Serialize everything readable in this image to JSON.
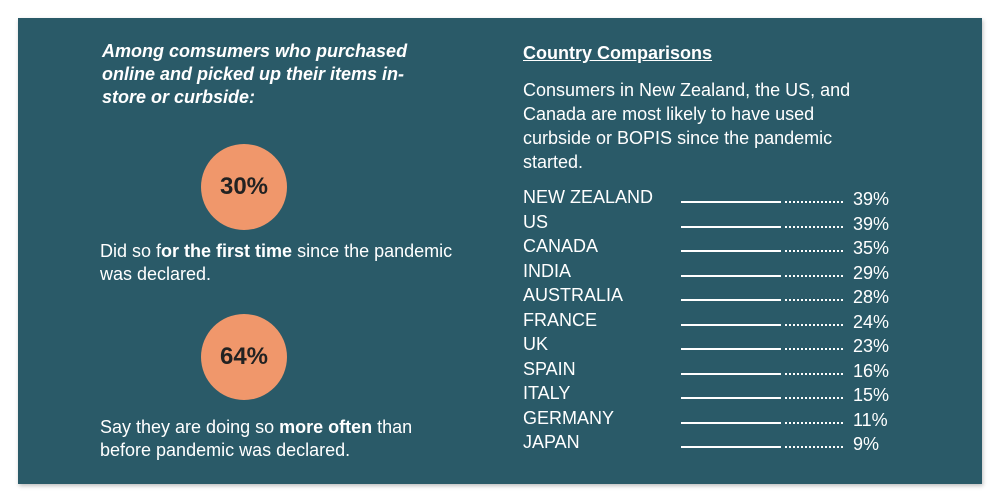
{
  "left": {
    "intro": "Among comsumers who purchased online and picked up their items in-store or curbside:",
    "stats": [
      {
        "value": "30%",
        "text_before": "Did so f",
        "text_bold": "or the first time",
        "text_after": " since the pandemic was declared."
      },
      {
        "value": "64%",
        "text_before": "Say they are doing so ",
        "text_bold": "more often",
        "text_after": " than before pandemic was declared."
      }
    ],
    "circle_color": "#f0976b"
  },
  "right": {
    "title": "Country Comparisons",
    "description": "Consumers in New Zealand, the US, and Canada are most likely to have used curbside or BOPIS since the pandemic started.",
    "rows": [
      {
        "country": "NEW ZEALAND",
        "pct": "39%"
      },
      {
        "country": "US",
        "pct": "39%"
      },
      {
        "country": "CANADA",
        "pct": "35%"
      },
      {
        "country": "INDIA",
        "pct": "29%"
      },
      {
        "country": "AUSTRALIA",
        "pct": "28%"
      },
      {
        "country": "FRANCE",
        "pct": "24%"
      },
      {
        "country": "UK",
        "pct": "23%"
      },
      {
        "country": "SPAIN",
        "pct": "16%"
      },
      {
        "country": "ITALY",
        "pct": "15%"
      },
      {
        "country": "GERMANY",
        "pct": "11%"
      },
      {
        "country": "JAPAN",
        "pct": "9%"
      }
    ]
  },
  "colors": {
    "background": "#2a5a68",
    "text": "#ffffff"
  }
}
